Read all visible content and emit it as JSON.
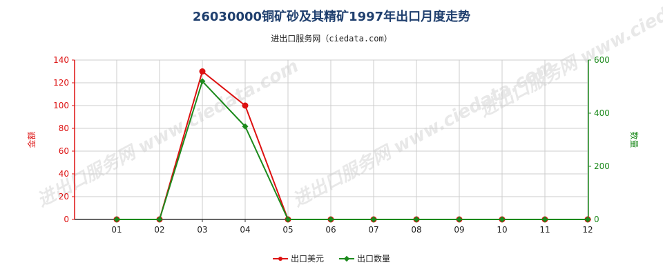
{
  "title": "26030000铜矿砂及其精矿1997年出口月度走势",
  "subtitle": "进出口服务网（ciedata.com）",
  "watermark": "进出口服务网 www.ciedata.com",
  "colors": {
    "left": "#dd1111",
    "right": "#1c8a1c",
    "grid": "#cccccc"
  },
  "chart_data": {
    "type": "line",
    "categories": [
      "01",
      "02",
      "03",
      "04",
      "05",
      "06",
      "07",
      "08",
      "09",
      "10",
      "11",
      "12"
    ],
    "y_left": {
      "label": "金额",
      "ylim": [
        0,
        140
      ],
      "ticks": [
        0,
        20,
        40,
        60,
        80,
        100,
        120,
        140
      ]
    },
    "y_right": {
      "label": "数量",
      "ylim": [
        0,
        600
      ],
      "ticks": [
        0,
        200,
        400,
        600
      ]
    },
    "series": [
      {
        "name": "出口美元",
        "axis": "left",
        "color": "#dd1111",
        "marker": "circle",
        "values": [
          0,
          0,
          130,
          100,
          0,
          0,
          0,
          0,
          0,
          0,
          0,
          0
        ]
      },
      {
        "name": "出口数量",
        "axis": "right",
        "color": "#1c8a1c",
        "marker": "diamond",
        "values": [
          0,
          0,
          520,
          350,
          0,
          0,
          0,
          0,
          0,
          0,
          0,
          0
        ]
      }
    ],
    "grid": true,
    "legend": "bottom-center"
  }
}
